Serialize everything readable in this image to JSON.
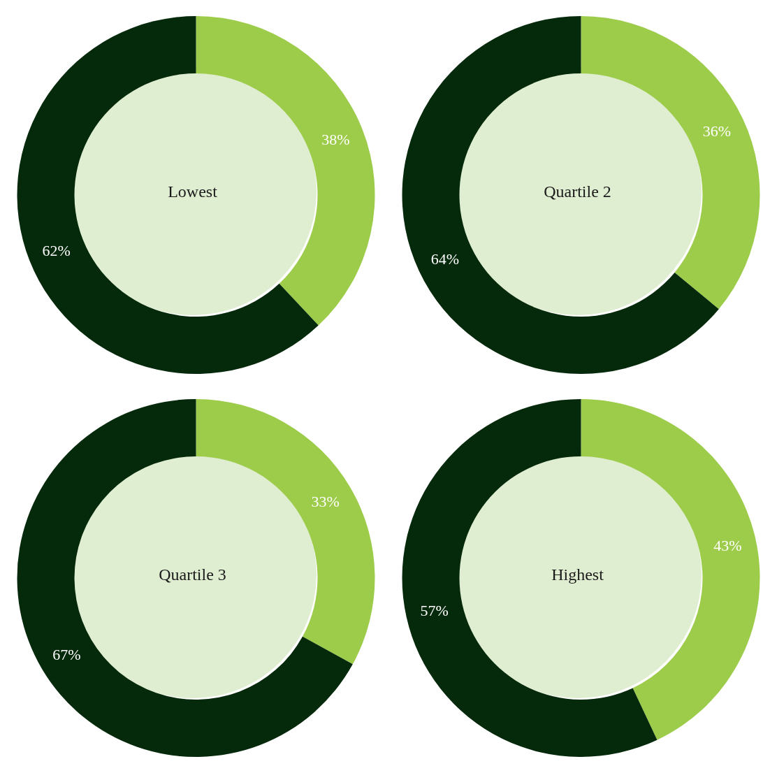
{
  "chart_data": [
    {
      "type": "donut",
      "title": "Lowest",
      "categories": [
        null,
        null
      ],
      "values": [
        38,
        62
      ],
      "colors": [
        "#9ccc4a",
        "#05290b"
      ],
      "value_labels": [
        "38%",
        "62%"
      ]
    },
    {
      "type": "donut",
      "title": "Quartile 2",
      "categories": [
        null,
        null
      ],
      "values": [
        36,
        64
      ],
      "colors": [
        "#9ccc4a",
        "#05290b"
      ],
      "value_labels": [
        "36%",
        "64%"
      ]
    },
    {
      "type": "donut",
      "title": "Quartile 3",
      "categories": [
        null,
        null
      ],
      "values": [
        33,
        67
      ],
      "colors": [
        "#9ccc4a",
        "#05290b"
      ],
      "value_labels": [
        "33%",
        "67%"
      ]
    },
    {
      "type": "donut",
      "title": "Highest",
      "categories": [
        null,
        null
      ],
      "values": [
        43,
        57
      ],
      "colors": [
        "#9ccc4a",
        "#05290b"
      ],
      "value_labels": [
        "43%",
        "57%"
      ]
    }
  ]
}
